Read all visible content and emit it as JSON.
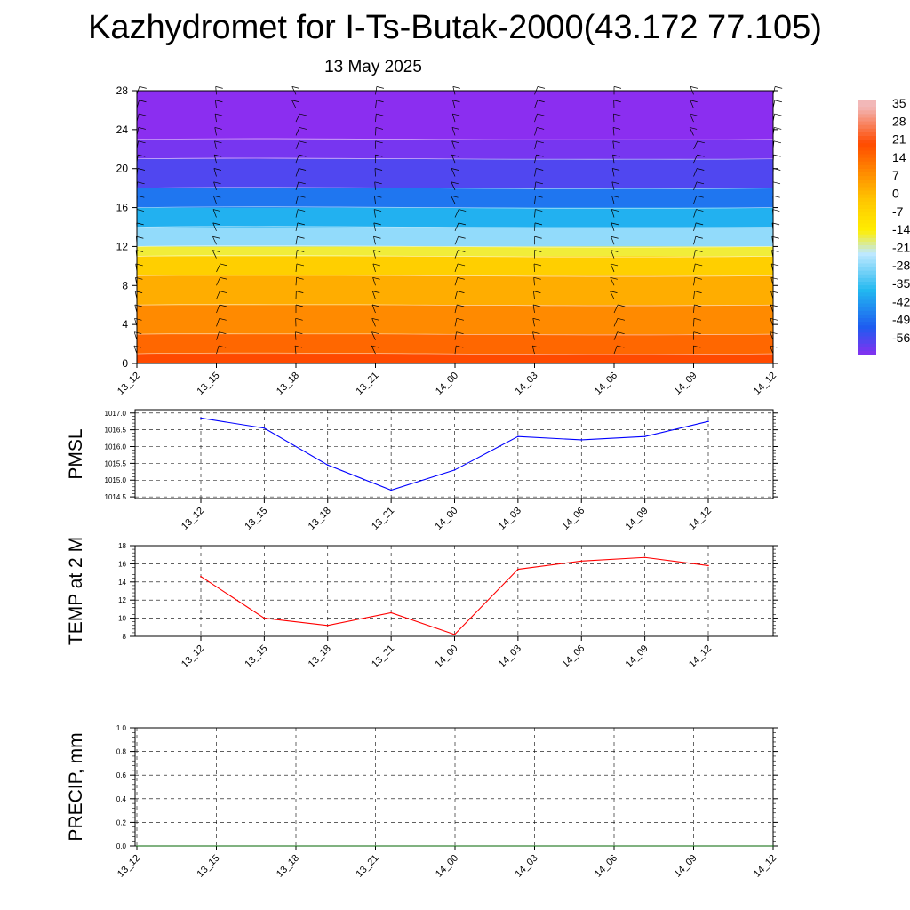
{
  "header": {
    "title": "Kazhydromet for I-Ts-Butak-2000(43.172 77.105)",
    "date": "13 May 2025"
  },
  "colorbar": {
    "labels": [
      "35",
      "28",
      "21",
      "14",
      "7",
      "0",
      "-7",
      "-14",
      "-21",
      "-28",
      "-35",
      "-42",
      "-49",
      "-56"
    ],
    "colors": {
      "top": "#f2b8b8",
      "red": "#dd1010",
      "orange": "#ff8a00",
      "yellow": "#ffee00",
      "lightblue": "#bfe9ff",
      "cyan": "#22b8f0",
      "blue": "#1e5bf0",
      "violet": "#8b2ef0"
    }
  },
  "chart_data": [
    {
      "type": "heatmap",
      "title": "",
      "xlabel": "",
      "ylabel": "",
      "x": [
        "13_12",
        "13_15",
        "13_18",
        "13_21",
        "14_00",
        "14_03",
        "14_06",
        "14_09",
        "14_12"
      ],
      "yticks": [
        0,
        4,
        8,
        12,
        16,
        20,
        24,
        28
      ],
      "ylim": [
        0,
        28
      ],
      "bands": [
        {
          "from": 0,
          "to": 1,
          "value": 21
        },
        {
          "from": 1,
          "to": 3,
          "value": 16
        },
        {
          "from": 3,
          "to": 6,
          "value": 10
        },
        {
          "from": 6,
          "to": 9,
          "value": 4
        },
        {
          "from": 9,
          "to": 11,
          "value": -3
        },
        {
          "from": 11,
          "to": 12,
          "value": -14
        },
        {
          "from": 12,
          "to": 14,
          "value": -25
        },
        {
          "from": 14,
          "to": 16,
          "value": -36
        },
        {
          "from": 16,
          "to": 18,
          "value": -45
        },
        {
          "from": 18,
          "to": 21,
          "value": -54
        },
        {
          "from": 21,
          "to": 23,
          "value": -58
        },
        {
          "from": 23,
          "to": 28,
          "value": -60
        }
      ],
      "wind_barbs": true
    },
    {
      "type": "line",
      "title": "",
      "ylabel": "PMSL",
      "categories": [
        "13_12",
        "13_15",
        "13_18",
        "13_21",
        "14_00",
        "14_03",
        "14_06",
        "14_09",
        "14_12"
      ],
      "series": [
        {
          "values": [
            1016.85,
            1016.55,
            1015.45,
            1014.7,
            1015.3,
            1016.3,
            1016.2,
            1016.3,
            1016.75
          ],
          "color": "#0000ff"
        }
      ],
      "yticks": [
        "1014.5",
        "1015.0",
        "1015.5",
        "1016.0",
        "1016.5",
        "1017.0"
      ],
      "ylim": [
        1014.45,
        1017.1
      ],
      "grid": true
    },
    {
      "type": "line",
      "title": "",
      "ylabel": "TEMP at 2 M",
      "categories": [
        "13_12",
        "13_15",
        "13_18",
        "13_21",
        "14_00",
        "14_03",
        "14_06",
        "14_09",
        "14_12"
      ],
      "series": [
        {
          "values": [
            14.6,
            10.0,
            9.2,
            10.6,
            8.2,
            15.4,
            16.3,
            16.7,
            15.8
          ],
          "color": "#ff0000"
        }
      ],
      "yticks": [
        "8",
        "10",
        "12",
        "14",
        "16",
        "18"
      ],
      "ylim": [
        8,
        18
      ],
      "grid": true
    },
    {
      "type": "line",
      "title": "",
      "ylabel": "PRECIP, mm",
      "categories": [
        "13_12",
        "13_15",
        "13_18",
        "13_21",
        "14_00",
        "14_03",
        "14_06",
        "14_09",
        "14_12"
      ],
      "series": [
        {
          "values": [
            0,
            0,
            0,
            0,
            0,
            0,
            0,
            0,
            0
          ],
          "color": "#006400"
        }
      ],
      "yticks": [
        "0.0",
        "0.2",
        "0.4",
        "0.6",
        "0.8",
        "1.0"
      ],
      "ylim": [
        0,
        1
      ],
      "grid": true
    }
  ]
}
